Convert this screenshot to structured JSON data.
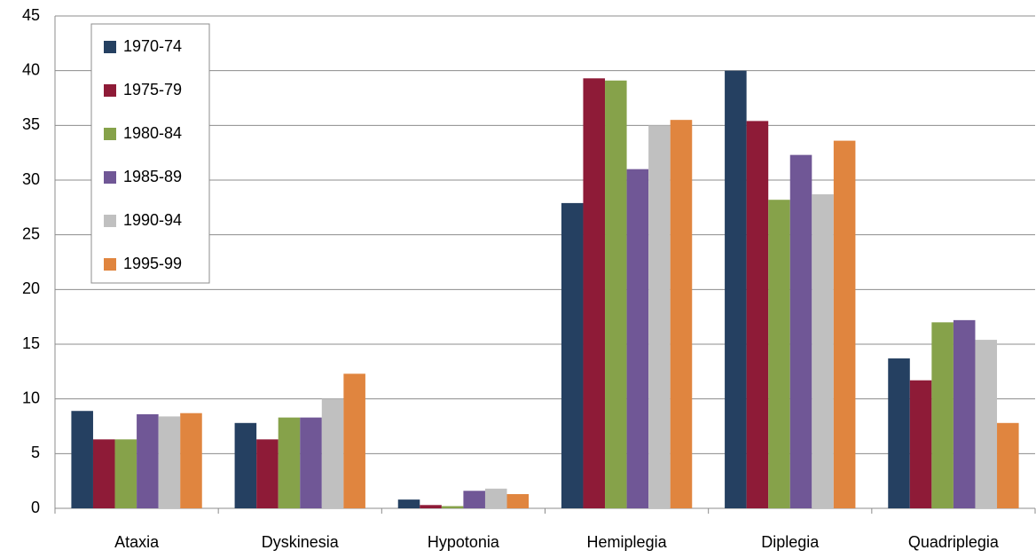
{
  "chart_data": {
    "type": "bar",
    "categories": [
      "Ataxia",
      "Dyskinesia",
      "Hypotonia",
      "Hemiplegia",
      "Diplegia",
      "Quadriplegia"
    ],
    "series": [
      {
        "name": "1970-74",
        "color": "#254061",
        "values": [
          8.9,
          7.8,
          0.8,
          27.9,
          40.0,
          13.7
        ]
      },
      {
        "name": "1975-79",
        "color": "#8e1b37",
        "values": [
          6.3,
          6.3,
          0.3,
          39.3,
          35.4,
          11.7
        ]
      },
      {
        "name": "1980-84",
        "color": "#86a24a",
        "values": [
          6.3,
          8.3,
          0.2,
          39.1,
          28.2,
          17.0
        ]
      },
      {
        "name": "1985-89",
        "color": "#705796",
        "values": [
          8.6,
          8.3,
          1.6,
          31.0,
          32.3,
          17.2
        ]
      },
      {
        "name": "1990-94",
        "color": "#c0c0c0",
        "values": [
          8.4,
          10.0,
          1.8,
          35.0,
          28.7,
          15.4
        ]
      },
      {
        "name": "1995-99",
        "color": "#e0853f",
        "values": [
          8.7,
          12.3,
          1.3,
          35.5,
          33.6,
          7.8
        ]
      }
    ],
    "ylim": [
      0,
      45
    ],
    "yticks": [
      0,
      5,
      10,
      15,
      20,
      25,
      30,
      35,
      40,
      45
    ],
    "grid": true,
    "legend": "upper-left"
  }
}
